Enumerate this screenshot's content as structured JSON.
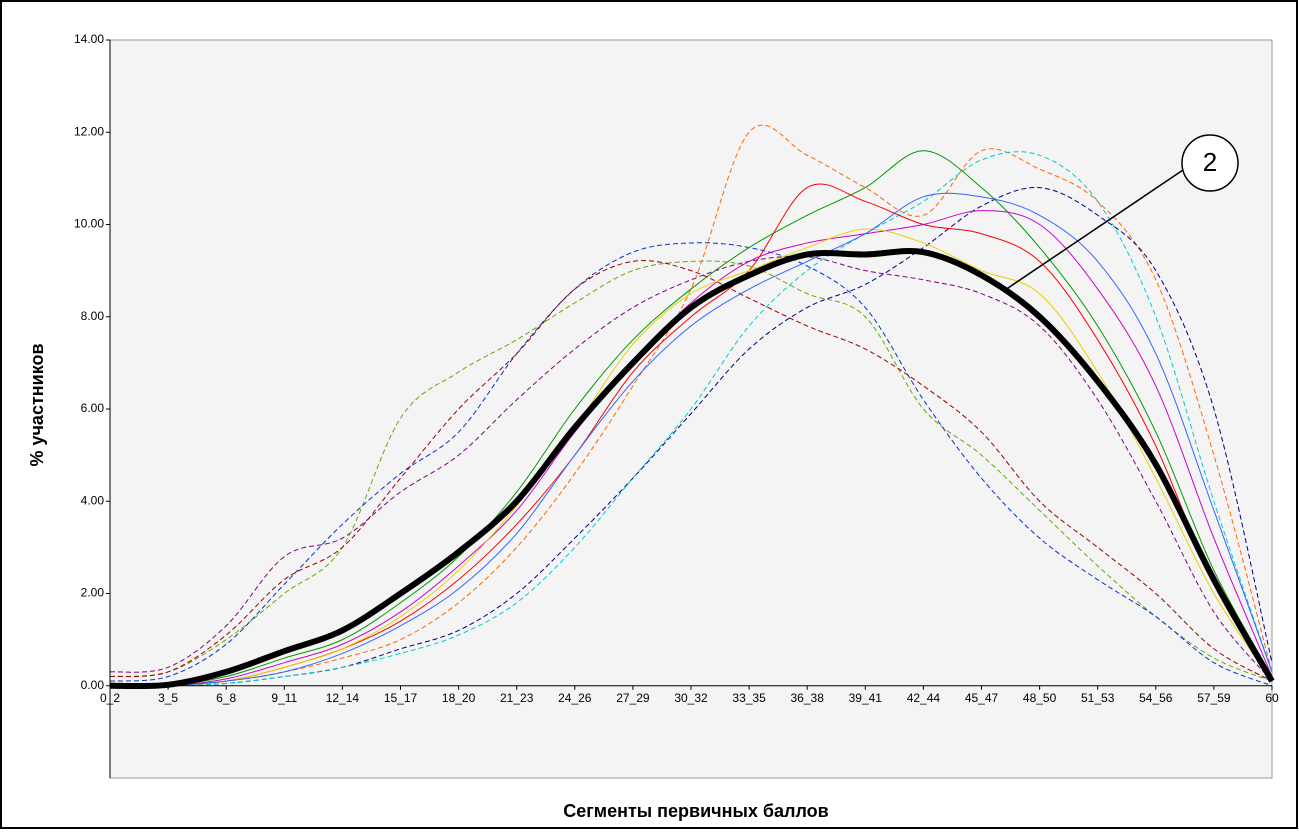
{
  "chart_data": {
    "type": "line",
    "y_label": "% участников",
    "x_label": "Сегменты первичных баллов",
    "annotation": "2",
    "categories": [
      "0_2",
      "3_5",
      "6_8",
      "9_11",
      "12_14",
      "15_17",
      "18_20",
      "21_23",
      "24_26",
      "27_29",
      "30_32",
      "33_35",
      "36_38",
      "39_41",
      "42_44",
      "45_47",
      "48_50",
      "51_53",
      "54_56",
      "57_59",
      "60"
    ],
    "ylim": [
      -2,
      14
    ],
    "yticks": [
      {
        "value": 0,
        "label": "0.00"
      },
      {
        "value": 2,
        "label": "2.00"
      },
      {
        "value": 4,
        "label": "4.00"
      },
      {
        "value": 6,
        "label": "6.00"
      },
      {
        "value": 8,
        "label": "8.00"
      },
      {
        "value": 10,
        "label": "10.00"
      },
      {
        "value": 12,
        "label": "12.00"
      },
      {
        "value": 14,
        "label": "14.00"
      }
    ],
    "series": [
      {
        "color": "#800080",
        "dash": true,
        "values": [
          0.3,
          0.4,
          1.3,
          2.8,
          3.2,
          4.2,
          5.0,
          6.2,
          7.3,
          8.2,
          8.8,
          9.2,
          9.3,
          9.0,
          8.8,
          8.5,
          7.8,
          6.2,
          4.0,
          1.6,
          0.1
        ]
      },
      {
        "color": "#66aa00",
        "dash": true,
        "values": [
          0.2,
          0.3,
          1.0,
          2.0,
          3.0,
          5.8,
          6.8,
          7.5,
          8.3,
          9.0,
          9.2,
          9.1,
          8.5,
          8.0,
          6.0,
          5.0,
          3.8,
          2.6,
          1.5,
          0.6,
          0.1
        ]
      },
      {
        "color": "#0033cc",
        "dash": true,
        "values": [
          0.1,
          0.2,
          0.9,
          2.2,
          3.5,
          4.6,
          5.5,
          7.2,
          8.6,
          9.4,
          9.6,
          9.5,
          9.1,
          8.2,
          6.2,
          4.5,
          3.2,
          2.3,
          1.5,
          0.5,
          0.0
        ]
      },
      {
        "color": "#ff6600",
        "dash": true,
        "values": [
          0,
          0,
          0.1,
          0.3,
          0.6,
          1.0,
          1.8,
          3.0,
          4.6,
          6.5,
          8.6,
          12.0,
          11.5,
          10.8,
          10.2,
          11.6,
          11.2,
          10.5,
          8.8,
          5.0,
          0.3
        ]
      },
      {
        "color": "#000080",
        "dash": true,
        "values": [
          0,
          0,
          0.05,
          0.2,
          0.4,
          0.8,
          1.2,
          2.0,
          3.2,
          4.5,
          5.9,
          7.3,
          8.2,
          8.7,
          9.5,
          10.4,
          10.8,
          10.2,
          9.0,
          6.0,
          0.5
        ]
      },
      {
        "color": "#00cccc",
        "dash": true,
        "values": [
          0,
          0,
          0.05,
          0.2,
          0.4,
          0.7,
          1.1,
          1.8,
          3.0,
          4.5,
          6.0,
          7.8,
          9.0,
          9.8,
          10.5,
          11.4,
          11.5,
          10.5,
          8.0,
          4.0,
          0.3
        ]
      },
      {
        "color": "#009900",
        "dash": false,
        "values": [
          0,
          0,
          0.2,
          0.6,
          1.0,
          1.8,
          2.8,
          4.2,
          6.0,
          7.5,
          8.6,
          9.5,
          10.2,
          10.8,
          11.6,
          10.8,
          9.5,
          7.8,
          5.5,
          2.5,
          0.2
        ]
      },
      {
        "color": "#ff0000",
        "dash": false,
        "values": [
          0,
          0,
          0.1,
          0.4,
          0.8,
          1.4,
          2.3,
          3.5,
          5.0,
          6.8,
          8.0,
          9.0,
          10.8,
          10.5,
          10.0,
          9.8,
          9.2,
          7.5,
          5.2,
          2.2,
          0.1
        ]
      },
      {
        "color": "#990000",
        "dash": true,
        "values": [
          0.2,
          0.3,
          1.1,
          2.3,
          3.0,
          4.5,
          6.0,
          7.2,
          8.6,
          9.2,
          9.0,
          8.4,
          7.8,
          7.3,
          6.5,
          5.5,
          4.0,
          3.0,
          2.0,
          0.8,
          0.1
        ]
      },
      {
        "color": "#cc00cc",
        "dash": false,
        "values": [
          0,
          0,
          0.15,
          0.5,
          0.9,
          1.6,
          2.6,
          3.8,
          5.5,
          7.0,
          8.3,
          9.2,
          9.6,
          9.8,
          10.0,
          10.3,
          10.0,
          8.6,
          6.5,
          3.2,
          0.2
        ]
      },
      {
        "color": "#e6d200",
        "dash": false,
        "values": [
          0,
          0,
          0.1,
          0.4,
          0.8,
          1.5,
          2.5,
          3.9,
          5.6,
          7.4,
          8.5,
          9.0,
          9.5,
          9.9,
          9.6,
          9.0,
          8.5,
          6.8,
          4.5,
          2.0,
          0.1
        ]
      },
      {
        "color": "#3366ff",
        "dash": false,
        "values": [
          0,
          0,
          0.1,
          0.3,
          0.7,
          1.3,
          2.1,
          3.3,
          5.0,
          6.6,
          7.8,
          8.6,
          9.2,
          9.8,
          10.6,
          10.6,
          10.2,
          9.2,
          7.2,
          3.8,
          0.3
        ]
      },
      {
        "color": "#000000",
        "dash": false,
        "width": 6,
        "values": [
          0,
          0.02,
          0.3,
          0.75,
          1.2,
          2.0,
          2.9,
          4.0,
          5.6,
          7.0,
          8.2,
          8.9,
          9.35,
          9.35,
          9.4,
          8.9,
          8.0,
          6.6,
          4.8,
          2.3,
          0.1
        ]
      }
    ]
  }
}
